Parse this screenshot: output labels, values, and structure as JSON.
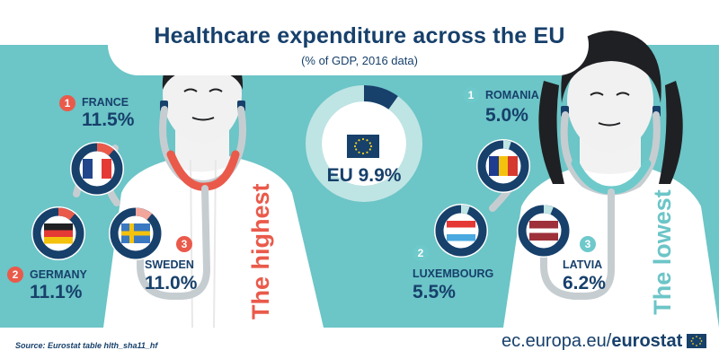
{
  "title": "Healthcare expenditure across the EU",
  "subtitle": "(% of GDP, 2016 data)",
  "eu_average": {
    "label": "EU 9.9%",
    "value": 9.9
  },
  "highest": {
    "label": "The highest",
    "countries": [
      {
        "rank": "1",
        "name": "FRANCE",
        "value_label": "11.5%",
        "value": 11.5
      },
      {
        "rank": "2",
        "name": "GERMANY",
        "value_label": "11.1%",
        "value": 11.1
      },
      {
        "rank": "3",
        "name": "SWEDEN",
        "value_label": "11.0%",
        "value": 11.0
      }
    ]
  },
  "lowest": {
    "label": "The lowest",
    "countries": [
      {
        "rank": "1",
        "name": "ROMANIA",
        "value_label": "5.0%",
        "value": 5.0
      },
      {
        "rank": "2",
        "name": "LUXEMBOURG",
        "value_label": "5.5%",
        "value": 5.5
      },
      {
        "rank": "3",
        "name": "LATVIA",
        "value_label": "6.2%",
        "value": 6.2
      }
    ]
  },
  "source": "Source: Eurostat table hlth_sha11_hf",
  "brand": {
    "prefix": "ec.europa.eu/",
    "name": "eurostat"
  },
  "colors": {
    "background": "#ffffff",
    "teal": "#6cc5c7",
    "navy": "#17406b",
    "red": "#ea5a4b",
    "light_teal": "#bfe4e4",
    "hair": "#1f2023"
  }
}
